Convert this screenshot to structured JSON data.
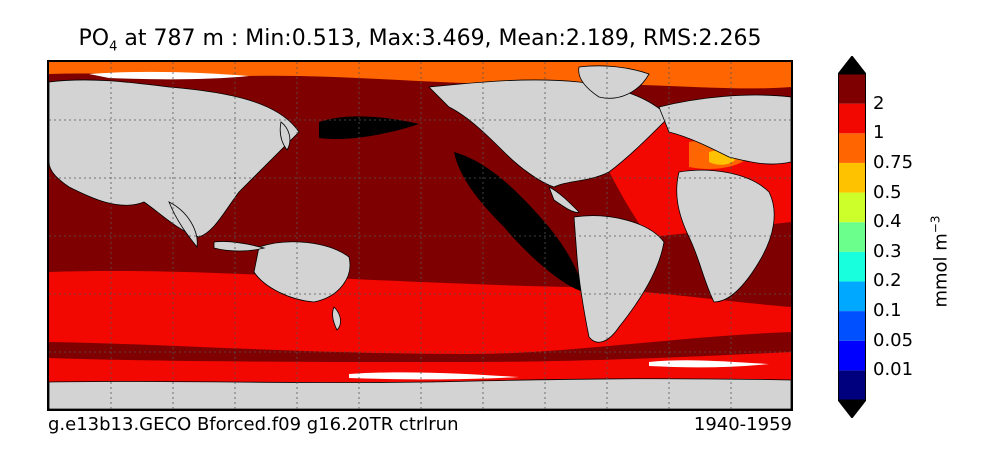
{
  "title": {
    "var_main": "PO",
    "var_sub": "4",
    "rest": " at 787 m : Min:0.513, Max:3.469, Mean:2.189, RMS:2.265"
  },
  "footer": {
    "run_name": "g.e13b13.GECO Bforced.f09 g16.20TR ctrlrun",
    "years": "1940-1959"
  },
  "colorbar": {
    "units_label": "mmol m",
    "units_sup": "−3",
    "ticks": [
      "0.01",
      "0.05",
      "0.1",
      "0.2",
      "0.3",
      "0.4",
      "0.5",
      "0.75",
      "1",
      "2"
    ],
    "colors": [
      "#00007f",
      "#0000ff",
      "#0050ff",
      "#00a8ff",
      "#18ffdd",
      "#6bff8b",
      "#cdff2a",
      "#ffc200",
      "#ff6500",
      "#f20800",
      "#7f0000"
    ],
    "overflow_color": "#000000"
  },
  "map_colors": {
    "land": "#d3d3d3",
    "ice": "#ffffff",
    "grid": "#555555"
  }
}
